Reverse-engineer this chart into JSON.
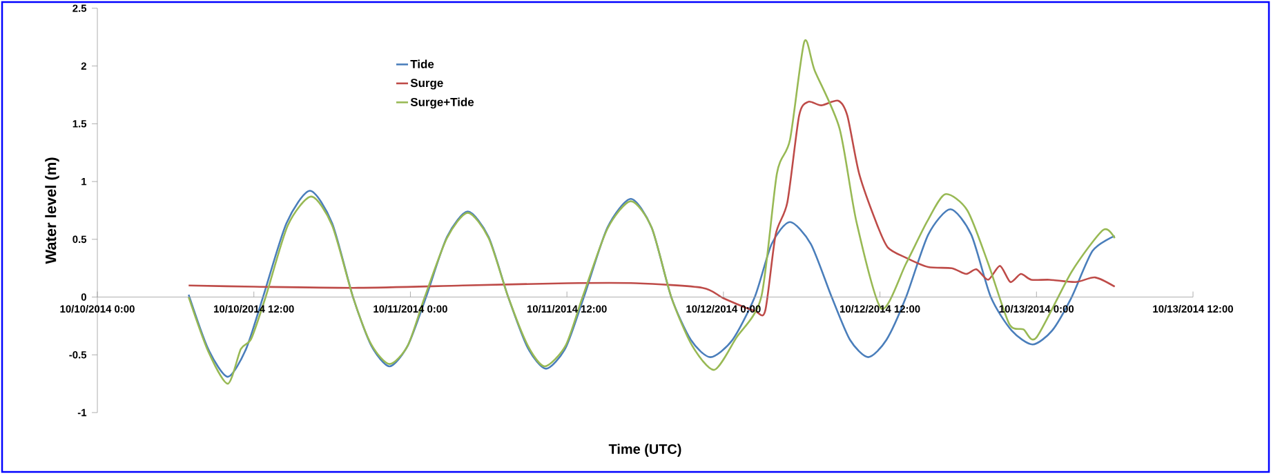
{
  "chart_data": {
    "type": "line",
    "xlabel": "Time (UTC)",
    "ylabel": "Water level (m)",
    "legend": "top left",
    "marker": "none",
    "line_style": "solid",
    "xlim": [
      "2014-10-10T00:00",
      "2014-10-13T12:00"
    ],
    "ylim": [
      -1,
      2.5
    ],
    "xticks": [
      {
        "value": "2014-10-10T00:00",
        "label": "10/10/2014  0:00"
      },
      {
        "value": "2014-10-10T12:00",
        "label": "10/10/2014  12:00"
      },
      {
        "value": "2014-10-11T00:00",
        "label": "10/11/2014  0:00"
      },
      {
        "value": "2014-10-11T12:00",
        "label": "10/11/2014  12:00"
      },
      {
        "value": "2014-10-12T00:00",
        "label": "10/12/2014  0:00"
      },
      {
        "value": "2014-10-12T12:00",
        "label": "10/12/2014  12:00"
      },
      {
        "value": "2014-10-13T00:00",
        "label": "10/13/2014  0:00"
      },
      {
        "value": "2014-10-13T12:00",
        "label": "10/13/2014  12:00"
      }
    ],
    "yticks": [
      -1,
      -0.5,
      0,
      0.5,
      1,
      1.5,
      2,
      2.5
    ],
    "series": [
      {
        "name": "Tide",
        "color": "#4a7ebb",
        "x": [
          "2014-10-10T07:00",
          "2014-10-10T08:30",
          "2014-10-10T10:00",
          "2014-10-10T11:24",
          "2014-10-10T12:42",
          "2014-10-10T14:30",
          "2014-10-10T16:18",
          "2014-10-10T18:00",
          "2014-10-10T19:36",
          "2014-10-10T21:00",
          "2014-10-10T22:24",
          "2014-10-10T23:48",
          "2014-10-11T01:12",
          "2014-10-11T02:48",
          "2014-10-11T04:24",
          "2014-10-11T06:00",
          "2014-10-11T07:30",
          "2014-10-11T09:00",
          "2014-10-11T10:24",
          "2014-10-11T11:54",
          "2014-10-11T13:18",
          "2014-10-11T15:06",
          "2014-10-11T16:54",
          "2014-10-11T18:30",
          "2014-10-11T20:00",
          "2014-10-11T21:30",
          "2014-10-11T23:00",
          "2014-10-12T00:42",
          "2014-10-12T02:24",
          "2014-10-12T03:42",
          "2014-10-12T05:06",
          "2014-10-12T06:42",
          "2014-10-12T08:18",
          "2014-10-12T09:42",
          "2014-10-12T11:06",
          "2014-10-12T12:30",
          "2014-10-12T14:00",
          "2014-10-12T15:42",
          "2014-10-12T17:24",
          "2014-10-12T19:00",
          "2014-10-12T20:30",
          "2014-10-12T22:06",
          "2014-10-12T23:42",
          "2014-10-13T01:12",
          "2014-10-13T02:42",
          "2014-10-13T04:18",
          "2014-10-13T06:00"
        ],
        "values": [
          0.02,
          -0.45,
          -0.69,
          -0.45,
          0,
          0.64,
          0.92,
          0.64,
          0,
          -0.42,
          -0.6,
          -0.42,
          0,
          0.52,
          0.74,
          0.52,
          0,
          -0.44,
          -0.62,
          -0.44,
          0,
          0.6,
          0.85,
          0.6,
          0,
          -0.37,
          -0.52,
          -0.37,
          0,
          0.46,
          0.65,
          0.46,
          0,
          -0.37,
          -0.52,
          -0.37,
          0,
          0.54,
          0.76,
          0.54,
          0,
          -0.29,
          -0.41,
          -0.29,
          0,
          0.4,
          0.53
        ]
      },
      {
        "name": "Surge",
        "color": "#be4b48",
        "x": [
          "2014-10-10T07:00",
          "2014-10-10T12:00",
          "2014-10-10T20:00",
          "2014-10-11T04:00",
          "2014-10-11T12:00",
          "2014-10-11T17:18",
          "2014-10-11T22:24",
          "2014-10-12T00:00",
          "2014-10-12T02:24",
          "2014-10-12T03:12",
          "2014-10-12T04:00",
          "2014-10-12T04:54",
          "2014-10-12T05:48",
          "2014-10-12T06:30",
          "2014-10-12T07:30",
          "2014-10-12T08:48",
          "2014-10-12T09:30",
          "2014-10-12T10:24",
          "2014-10-12T11:42",
          "2014-10-12T12:36",
          "2014-10-12T14:00",
          "2014-10-12T15:42",
          "2014-10-12T17:30",
          "2014-10-12T18:36",
          "2014-10-12T19:24",
          "2014-10-12T20:18",
          "2014-10-12T21:12",
          "2014-10-12T22:00",
          "2014-10-12T22:48",
          "2014-10-12T23:36",
          "2014-10-13T01:00",
          "2014-10-13T03:00",
          "2014-10-13T04:30",
          "2014-10-13T06:00"
        ],
        "values": [
          0.1,
          0.09,
          0.08,
          0.1,
          0.12,
          0.12,
          0.08,
          -0.01,
          -0.12,
          -0.12,
          0.54,
          0.82,
          1.57,
          1.69,
          1.66,
          1.7,
          1.57,
          1.07,
          0.65,
          0.43,
          0.34,
          0.26,
          0.25,
          0.2,
          0.24,
          0.15,
          0.27,
          0.13,
          0.2,
          0.15,
          0.15,
          0.13,
          0.17,
          0.09
        ]
      },
      {
        "name": "Surge+Tide",
        "color": "#98b954",
        "x": [
          "2014-10-10T07:00",
          "2014-10-10T08:30",
          "2014-10-10T10:00",
          "2014-10-10T11:00",
          "2014-10-10T11:48",
          "2014-10-10T12:54",
          "2014-10-10T14:36",
          "2014-10-10T16:24",
          "2014-10-10T18:00",
          "2014-10-10T19:36",
          "2014-10-10T21:00",
          "2014-10-10T22:24",
          "2014-10-10T23:48",
          "2014-10-11T01:06",
          "2014-10-11T02:48",
          "2014-10-11T04:24",
          "2014-10-11T06:00",
          "2014-10-11T07:30",
          "2014-10-11T09:00",
          "2014-10-11T10:18",
          "2014-10-11T11:54",
          "2014-10-11T13:12",
          "2014-10-11T15:06",
          "2014-10-11T16:54",
          "2014-10-11T18:30",
          "2014-10-11T20:00",
          "2014-10-11T21:36",
          "2014-10-11T23:18",
          "2014-10-12T01:00",
          "2014-10-12T02:54",
          "2014-10-12T04:06",
          "2014-10-12T05:06",
          "2014-10-12T06:12",
          "2014-10-12T07:00",
          "2014-10-12T08:54",
          "2014-10-12T10:12",
          "2014-10-12T12:06",
          "2014-10-12T14:00",
          "2014-10-12T15:36",
          "2014-10-12T17:00",
          "2014-10-12T18:42",
          "2014-10-12T20:18",
          "2014-10-12T21:54",
          "2014-10-12T23:00",
          "2014-10-13T00:00",
          "2014-10-13T02:42",
          "2014-10-13T05:06",
          "2014-10-13T06:00"
        ],
        "values": [
          0,
          -0.47,
          -0.75,
          -0.45,
          -0.36,
          0,
          0.62,
          0.87,
          0.62,
          0,
          -0.41,
          -0.58,
          -0.42,
          0,
          0.51,
          0.73,
          0.51,
          0,
          -0.42,
          -0.6,
          -0.42,
          0,
          0.59,
          0.83,
          0.6,
          0,
          -0.42,
          -0.63,
          -0.35,
          0,
          1.07,
          1.36,
          2.21,
          1.96,
          1.46,
          0.65,
          -0.1,
          0.29,
          0.65,
          0.89,
          0.75,
          0.29,
          -0.23,
          -0.28,
          -0.35,
          0.22,
          0.58,
          0.51
        ]
      }
    ]
  }
}
